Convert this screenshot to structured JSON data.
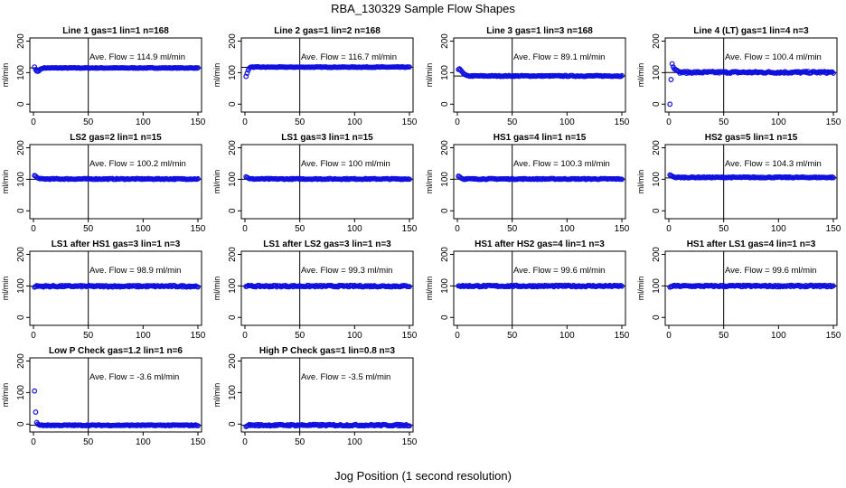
{
  "page": {
    "title": "RBA_130329  Sample Flow Shapes",
    "xlabel": "Jog Position (1 second resolution)"
  },
  "chart_data": {
    "type": "scatter",
    "point_color": "#1010e0",
    "ylabel": "ml/min",
    "xlim": [
      0,
      150
    ],
    "ylim": [
      -25,
      210
    ],
    "x_ticks": [
      0,
      50,
      100,
      150
    ],
    "y_ticks": [
      0,
      100,
      200
    ],
    "vertical_line_x": 50,
    "panels": [
      {
        "title": "Line 1 gas=1 lin=1 n=168",
        "annotation": "Ave. Flow =  114.9  ml/min",
        "ave": 114.9,
        "ref_y": 114.9,
        "shape": {
          "start": [
            118,
            110,
            105,
            104,
            106,
            110,
            112,
            113
          ],
          "level": 114.9,
          "noise": 1
        }
      },
      {
        "title": "Line 2 gas=1 lin=2 n=168",
        "annotation": "Ave. Flow =  116.7  ml/min",
        "ave": 116.7,
        "ref_y": 116.7,
        "shape": {
          "start": [
            88,
            98,
            108,
            114,
            117,
            118
          ],
          "level": 117.5,
          "noise": 1
        }
      },
      {
        "title": "Line 3 gas=1 lin=3 n=168",
        "annotation": "Ave. Flow =  89.1  ml/min",
        "ave": 89.1,
        "ref_y": 89.1,
        "shape": {
          "start": [
            110,
            112,
            108,
            104,
            100,
            96,
            94,
            92
          ],
          "level": 89.5,
          "noise": 1.5
        }
      },
      {
        "title": "Line 4 (LT) gas=1 lin=4 n=3",
        "annotation": "Ave. Flow =  100.4  ml/min",
        "ave": 100.4,
        "ref_y": 100.4,
        "shape": {
          "start": [
            0,
            78,
            128,
            118,
            112,
            110,
            108,
            106
          ],
          "level": 101,
          "noise": 3
        }
      },
      {
        "title": "LS2 gas=2 lin=1 n=15",
        "annotation": "Ave. Flow =  100.2  ml/min",
        "ave": 100.2,
        "ref_y": 100.2,
        "shape": {
          "start": [
            112,
            110,
            106,
            104,
            103
          ],
          "level": 101,
          "noise": 1.5
        }
      },
      {
        "title": "LS1 gas=3 lin=1 n=15",
        "annotation": "Ave. Flow =  100  ml/min",
        "ave": 100,
        "ref_y": 100,
        "shape": {
          "start": [
            108,
            106,
            104,
            102
          ],
          "level": 101,
          "noise": 1.5
        }
      },
      {
        "title": "HS1 gas=4 lin=1 n=15",
        "annotation": "Ave. Flow =  100.3  ml/min",
        "ave": 100.3,
        "ref_y": 100.3,
        "shape": {
          "start": [
            110,
            108,
            105,
            103
          ],
          "level": 101,
          "noise": 1.5
        }
      },
      {
        "title": "HS2 gas=5 lin=1 n=15",
        "annotation": "Ave. Flow =  104.3  ml/min",
        "ave": 104.3,
        "ref_y": 104.3,
        "shape": {
          "start": [
            114,
            112,
            110,
            108
          ],
          "level": 106,
          "noise": 1.5
        }
      },
      {
        "title": "LS1 after HS1 gas=3 lin=1 n=3",
        "annotation": "Ave. Flow =  98.9  ml/min",
        "ave": 98.9,
        "ref_y": 98.9,
        "shape": {
          "start": [
            96,
            98
          ],
          "level": 99,
          "noise": 2.5
        }
      },
      {
        "title": "LS1 after LS2 gas=3 lin=1 n=3",
        "annotation": "Ave. Flow =  99.3  ml/min",
        "ave": 99.3,
        "ref_y": 99.3,
        "shape": {
          "start": [
            98,
            99
          ],
          "level": 99.3,
          "noise": 2.5
        }
      },
      {
        "title": "HS1 after HS2 gas=4 lin=1 n=3",
        "annotation": "Ave. Flow =  99.6  ml/min",
        "ave": 99.6,
        "ref_y": 99.6,
        "shape": {
          "start": [
            100,
            100
          ],
          "level": 99.6,
          "noise": 2.5
        }
      },
      {
        "title": "HS1 after LS1 gas=4 lin=1 n=3",
        "annotation": "Ave. Flow =  99.6  ml/min",
        "ave": 99.6,
        "ref_y": 99.6,
        "shape": {
          "start": [
            96,
            98
          ],
          "level": 99.6,
          "noise": 2.5
        }
      },
      {
        "title": "Low P Check gas=1.2 lin=1 n=6",
        "annotation": "Ave. Flow =  -3.6  ml/min",
        "ave": -3.6,
        "ref_y": -3.6,
        "shape": {
          "start": [
            105,
            38,
            5,
            0,
            -2
          ],
          "level": -3.8,
          "noise": 1.5
        }
      },
      {
        "title": "High P Check gas=1 lin=0.8 n=3",
        "annotation": "Ave. Flow =  -3.5  ml/min",
        "ave": -3.5,
        "ref_y": -3.5,
        "shape": {
          "start": [
            -8,
            -6
          ],
          "level": -3.5,
          "noise": 2.5
        }
      }
    ]
  }
}
